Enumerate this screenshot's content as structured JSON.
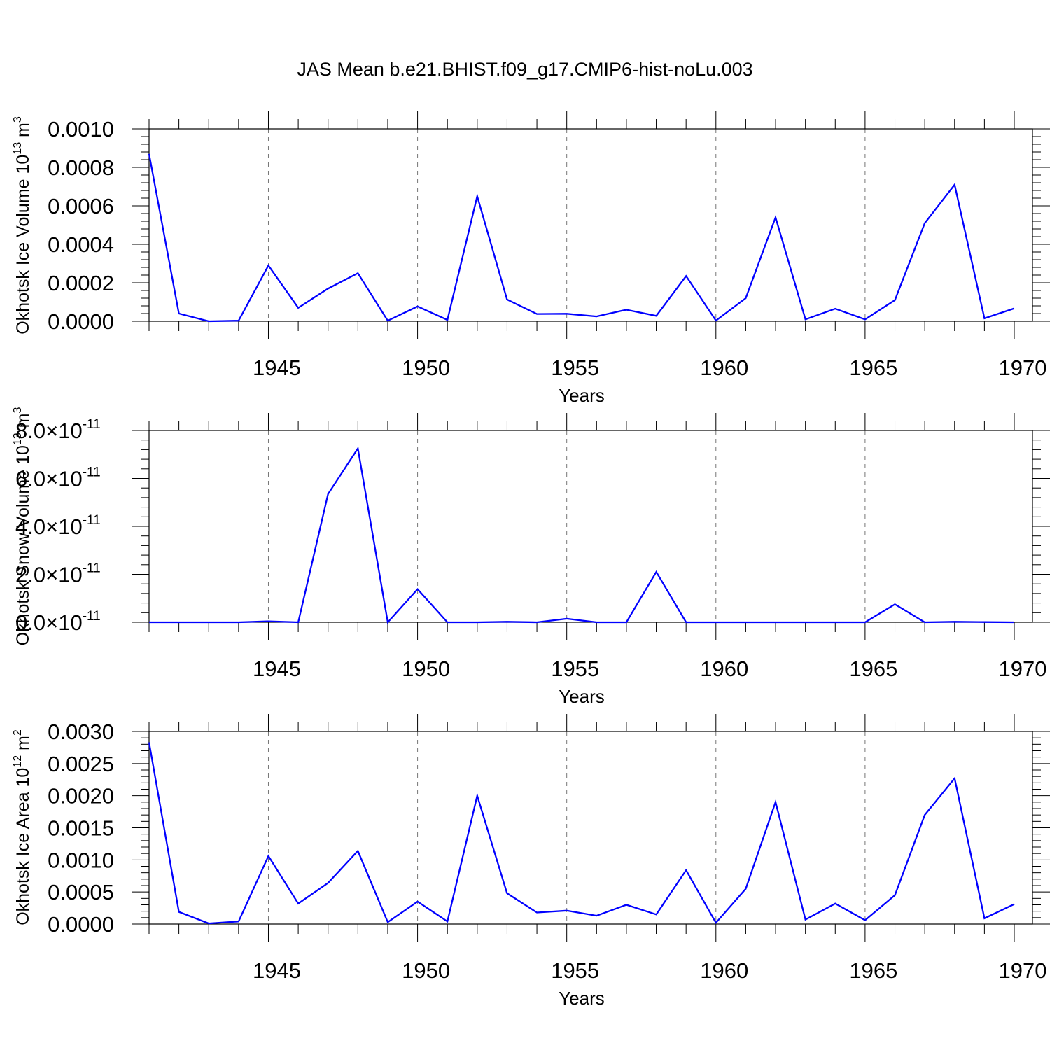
{
  "title": "JAS Mean b.e21.BHIST.f09_g17.CMIP6-hist-noLu.003",
  "line_color": "#0000ff",
  "chart_data": [
    {
      "type": "line",
      "xlabel": "Years",
      "ylabel": "Okhotsk Ice Volume 10",
      "ylabel_exp": "13",
      "ylabel_unit": " m",
      "ylabel_unit_exp": "3",
      "xlim": [
        1941,
        1970
      ],
      "ylim": [
        0,
        0.001
      ],
      "xticks": [
        1945,
        1950,
        1955,
        1960,
        1965,
        1970
      ],
      "yticks": [
        0,
        0.0002,
        0.0004,
        0.0006,
        0.0008,
        0.001
      ],
      "ytick_labels": [
        "0.0000",
        "0.0002",
        "0.0004",
        "0.0006",
        "0.0008",
        "0.0010"
      ],
      "grid": "vertical dashed at major x ticks",
      "series": [
        {
          "name": "ice_volume",
          "x": [
            1941,
            1942,
            1943,
            1944,
            1945,
            1946,
            1947,
            1948,
            1949,
            1950,
            1951,
            1952,
            1953,
            1954,
            1955,
            1956,
            1957,
            1958,
            1959,
            1960,
            1961,
            1962,
            1963,
            1964,
            1965,
            1966,
            1967,
            1968,
            1969,
            1970
          ],
          "values": [
            0.00087,
            4e-05,
            0.0,
            3e-06,
            0.00029,
            7e-05,
            0.00017,
            0.00025,
            3e-06,
            7.7e-05,
            7e-06,
            0.00065,
            0.000113,
            3.8e-05,
            3.9e-05,
            2.5e-05,
            6e-05,
            2.8e-05,
            0.000235,
            3.5e-06,
            0.00012,
            0.00054,
            1e-05,
            6.5e-05,
            1e-05,
            0.00011,
            0.00051,
            0.00071,
            1.5e-05,
            6.7e-05
          ]
        }
      ]
    },
    {
      "type": "line",
      "xlabel": "Years",
      "ylabel": "Okhotsk Snow Volume 10",
      "ylabel_exp": "13",
      "ylabel_unit": " m",
      "ylabel_unit_exp": "3",
      "xlim": [
        1941,
        1970
      ],
      "ylim": [
        0,
        8e-11
      ],
      "xticks": [
        1945,
        1950,
        1955,
        1960,
        1965,
        1970
      ],
      "yticks": [
        0,
        2e-11,
        4e-11,
        6e-11,
        8e-11
      ],
      "ytick_mantissas": [
        "0.0",
        "2.0",
        "4.0",
        "6.0",
        "8.0"
      ],
      "ytick_times": "×10",
      "ytick_exp": "-11",
      "grid": "vertical dashed at major x ticks",
      "series": [
        {
          "name": "snow_volume",
          "x": [
            1941,
            1942,
            1943,
            1944,
            1945,
            1946,
            1947,
            1948,
            1949,
            1950,
            1951,
            1952,
            1953,
            1954,
            1955,
            1956,
            1957,
            1958,
            1959,
            1960,
            1961,
            1962,
            1963,
            1964,
            1965,
            1966,
            1967,
            1968,
            1969,
            1970
          ],
          "values": [
            0.0,
            0.0,
            0.0,
            0.0,
            4e-13,
            0.0,
            5.35e-11,
            7.25e-11,
            0.0,
            1.38e-11,
            0.0,
            0.0,
            2e-13,
            0.0,
            1.5e-12,
            0.0,
            0.0,
            2.1e-11,
            0.0,
            0.0,
            0.0,
            0.0,
            0.0,
            0.0,
            0.0,
            7.5e-12,
            0.0,
            2e-13,
            1e-13,
            0.0
          ]
        }
      ]
    },
    {
      "type": "line",
      "xlabel": "Years",
      "ylabel": "Okhotsk Ice Area 10",
      "ylabel_exp": "12",
      "ylabel_unit": " m",
      "ylabel_unit_exp": "2",
      "xlim": [
        1941,
        1970
      ],
      "ylim": [
        0,
        0.003
      ],
      "xticks": [
        1945,
        1950,
        1955,
        1960,
        1965,
        1970
      ],
      "yticks": [
        0,
        0.0005,
        0.001,
        0.0015,
        0.002,
        0.0025,
        0.003
      ],
      "ytick_labels": [
        "0.0000",
        "0.0005",
        "0.0010",
        "0.0015",
        "0.0020",
        "0.0025",
        "0.0030"
      ],
      "grid": "vertical dashed at major x ticks",
      "series": [
        {
          "name": "ice_area",
          "x": [
            1941,
            1942,
            1943,
            1944,
            1945,
            1946,
            1947,
            1948,
            1949,
            1950,
            1951,
            1952,
            1953,
            1954,
            1955,
            1956,
            1957,
            1958,
            1959,
            1960,
            1961,
            1962,
            1963,
            1964,
            1965,
            1966,
            1967,
            1968,
            1969,
            1970
          ],
          "values": [
            0.00283,
            0.00019,
            1e-05,
            4e-05,
            0.00106,
            0.00032,
            0.00064,
            0.00114,
            3e-05,
            0.00035,
            4e-05,
            0.002,
            0.00048,
            0.00018,
            0.00021,
            0.00013,
            0.0003,
            0.00015,
            0.00084,
            2e-05,
            0.00055,
            0.0019,
            7e-05,
            0.00032,
            6e-05,
            0.00045,
            0.0017,
            0.00227,
            9e-05,
            0.00031
          ]
        }
      ]
    }
  ]
}
